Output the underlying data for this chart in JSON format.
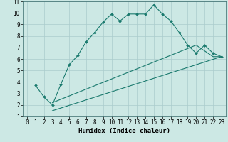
{
  "xlabel": "Humidex (Indice chaleur)",
  "bg_color": "#cce8e4",
  "grid_color": "#aacccc",
  "line_color": "#1a7a6e",
  "xlim": [
    -0.5,
    23.5
  ],
  "ylim": [
    1,
    11
  ],
  "xticks": [
    0,
    1,
    2,
    3,
    4,
    5,
    6,
    7,
    8,
    9,
    10,
    11,
    12,
    13,
    14,
    15,
    16,
    17,
    18,
    19,
    20,
    21,
    22,
    23
  ],
  "yticks": [
    1,
    2,
    3,
    4,
    5,
    6,
    7,
    8,
    9,
    10,
    11
  ],
  "series1_x": [
    1,
    2,
    3,
    4,
    5,
    6,
    7,
    8,
    9,
    10,
    11,
    12,
    13,
    14,
    15,
    16,
    17,
    18,
    19,
    20,
    21,
    22,
    23
  ],
  "series1_y": [
    3.7,
    2.7,
    2.0,
    3.8,
    5.5,
    6.3,
    7.5,
    8.3,
    9.2,
    9.9,
    9.3,
    9.9,
    9.9,
    9.9,
    10.7,
    9.9,
    9.3,
    8.3,
    7.2,
    6.5,
    7.2,
    6.5,
    6.2
  ],
  "series2_x": [
    3,
    23
  ],
  "series2_y": [
    1.5,
    6.2
  ],
  "series3_x": [
    3,
    20,
    21,
    22,
    23
  ],
  "series3_y": [
    2.2,
    7.2,
    6.7,
    6.2,
    6.2
  ],
  "tick_fontsize": 5.5,
  "xlabel_fontsize": 6.5,
  "lw": 0.8,
  "ms": 2.0
}
